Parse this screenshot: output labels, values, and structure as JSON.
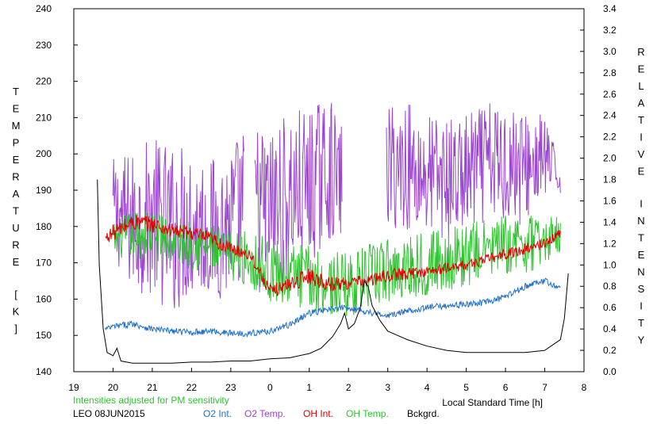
{
  "chart_data": {
    "type": "line",
    "left_axis_label": "TEMPERATURE [K]",
    "right_axis_label": "RELATIVE INTENSITY",
    "xlabel": "Local Standard Time [h]",
    "note": "Intensities adjusted for PM sensitivity",
    "station_date": "LEO 08JUN2015",
    "x_ticks": [
      "19",
      "20",
      "21",
      "22",
      "23",
      "0",
      "1",
      "2",
      "3",
      "4",
      "5",
      "6",
      "7",
      "8"
    ],
    "y_left_ticks": [
      "140",
      "150",
      "160",
      "170",
      "180",
      "190",
      "200",
      "210",
      "220",
      "230",
      "240"
    ],
    "y_right_ticks": [
      "0.0",
      "0.2",
      "0.4",
      "0.6",
      "0.8",
      "1.0",
      "1.2",
      "1.4",
      "1.6",
      "1.8",
      "2.0",
      "2.2",
      "2.4",
      "2.6",
      "2.8",
      "3.0",
      "3.2",
      "3.4"
    ],
    "xlim": [
      19,
      32
    ],
    "ylim_left": [
      140,
      240
    ],
    "ylim_right": [
      0,
      3.4
    ],
    "grid": false,
    "legend_position": "bottom",
    "legend": [
      {
        "key": "o2_int",
        "label": "O2 Int.",
        "color": "#1f6fd0"
      },
      {
        "key": "o2_temp",
        "label": "O2 Temp.",
        "color": "#9b46d0"
      },
      {
        "key": "oh_int",
        "label": "OH Int.",
        "color": "#e00000"
      },
      {
        "key": "oh_temp",
        "label": "OH Temp.",
        "color": "#2fc42f"
      },
      {
        "key": "bckgrd",
        "label": "Bckgrd.",
        "color": "#000000"
      }
    ],
    "series": [
      {
        "key": "o2_temp",
        "name": "O2 Temp.",
        "axis": "left",
        "color": "#9b46d0",
        "style": "noisy",
        "x": [
          20.0,
          20.5,
          21.0,
          21.5,
          22.0,
          22.5,
          23.0,
          23.5,
          24.0,
          24.5,
          25.0,
          25.5,
          25.8,
          27.0,
          27.5,
          28.0,
          28.5,
          29.0,
          29.5,
          30.0,
          30.5,
          31.0,
          31.4
        ],
        "y": [
          185,
          181,
          183,
          179,
          182,
          179,
          181,
          186,
          184,
          188,
          191,
          196,
          192,
          196,
          197,
          194,
          193,
          194,
          197,
          198,
          196,
          199,
          193
        ],
        "spread": [
          14,
          20,
          22,
          24,
          22,
          20,
          22,
          24,
          24,
          24,
          22,
          20,
          16,
          18,
          18,
          18,
          17,
          17,
          17,
          18,
          16,
          12,
          4
        ],
        "gaps": [
          [
            23.35,
            23.6
          ],
          [
            25.85,
            26.95
          ]
        ]
      },
      {
        "key": "oh_temp",
        "name": "OH Temp.",
        "axis": "left",
        "color": "#2fc42f",
        "style": "noisy",
        "x": [
          20.0,
          20.5,
          21.0,
          21.5,
          22.0,
          22.5,
          23.0,
          23.5,
          24.0,
          24.5,
          25.0,
          25.5,
          26.0,
          26.5,
          27.0,
          27.5,
          28.0,
          28.5,
          29.0,
          29.5,
          30.0,
          30.5,
          31.0,
          31.4
        ],
        "y": [
          176,
          178,
          178,
          176,
          175,
          174,
          172,
          171,
          168,
          167,
          166,
          164,
          164,
          166,
          168,
          169,
          170,
          171,
          172,
          174,
          175,
          175,
          176,
          178
        ],
        "spread": [
          5,
          7,
          7,
          7,
          7,
          7,
          7,
          8,
          9,
          9,
          9,
          9,
          9,
          9,
          9,
          9,
          9,
          9,
          9,
          8,
          8,
          8,
          7,
          5
        ]
      },
      {
        "key": "oh_int",
        "name": "OH Int.",
        "axis": "right",
        "color": "#e00000",
        "style": "noisy",
        "x": [
          19.8,
          20.0,
          20.5,
          21.0,
          21.5,
          22.0,
          22.5,
          23.0,
          23.5,
          24.0,
          24.5,
          25.0,
          25.5,
          26.0,
          26.5,
          27.0,
          27.5,
          28.0,
          28.5,
          29.0,
          29.5,
          30.0,
          30.5,
          31.0,
          31.4
        ],
        "y": [
          1.25,
          1.3,
          1.4,
          1.38,
          1.32,
          1.3,
          1.24,
          1.15,
          1.1,
          0.75,
          0.82,
          0.9,
          0.82,
          0.83,
          0.85,
          0.9,
          0.92,
          0.94,
          0.97,
          1.0,
          1.05,
          1.1,
          1.15,
          1.2,
          1.3
        ],
        "spread": [
          0.04,
          0.08,
          0.08,
          0.08,
          0.07,
          0.07,
          0.07,
          0.06,
          0.06,
          0.06,
          0.07,
          0.08,
          0.07,
          0.06,
          0.06,
          0.06,
          0.06,
          0.05,
          0.05,
          0.05,
          0.05,
          0.05,
          0.05,
          0.05,
          0.04
        ]
      },
      {
        "key": "o2_int",
        "name": "O2 Int.",
        "axis": "right",
        "color": "#1f6fd0",
        "style": "noisy",
        "x": [
          19.8,
          20.0,
          20.5,
          21.0,
          21.5,
          22.0,
          22.5,
          23.0,
          23.5,
          24.0,
          24.5,
          25.0,
          25.5,
          26.0,
          26.5,
          27.0,
          27.5,
          28.0,
          28.5,
          29.0,
          29.5,
          30.0,
          30.5,
          31.0,
          31.4
        ],
        "y": [
          0.4,
          0.42,
          0.45,
          0.4,
          0.38,
          0.37,
          0.38,
          0.36,
          0.36,
          0.38,
          0.44,
          0.55,
          0.58,
          0.6,
          0.56,
          0.52,
          0.57,
          0.6,
          0.62,
          0.63,
          0.65,
          0.7,
          0.8,
          0.85,
          0.78
        ],
        "spread": [
          0.02,
          0.03,
          0.03,
          0.03,
          0.03,
          0.03,
          0.03,
          0.03,
          0.03,
          0.03,
          0.03,
          0.03,
          0.03,
          0.03,
          0.03,
          0.03,
          0.03,
          0.03,
          0.03,
          0.03,
          0.03,
          0.03,
          0.03,
          0.03,
          0.02
        ]
      },
      {
        "key": "bckgrd",
        "name": "Bckgrd.",
        "axis": "right",
        "color": "#000000",
        "style": "smooth",
        "x": [
          19.6,
          19.65,
          19.75,
          19.85,
          20.0,
          20.1,
          20.2,
          20.5,
          21.0,
          21.5,
          22.0,
          22.5,
          23.0,
          23.5,
          24.0,
          24.5,
          25.0,
          25.3,
          25.6,
          25.8,
          25.9,
          26.0,
          26.15,
          26.3,
          26.4,
          26.5,
          26.6,
          26.8,
          27.0,
          27.5,
          28.0,
          28.5,
          29.0,
          29.5,
          30.0,
          30.5,
          31.0,
          31.2,
          31.4,
          31.5,
          31.6
        ],
        "y": [
          1.8,
          1.0,
          0.4,
          0.18,
          0.15,
          0.22,
          0.1,
          0.08,
          0.08,
          0.08,
          0.09,
          0.09,
          0.1,
          0.1,
          0.12,
          0.13,
          0.17,
          0.22,
          0.33,
          0.45,
          0.55,
          0.4,
          0.45,
          0.6,
          0.85,
          0.8,
          0.62,
          0.48,
          0.38,
          0.3,
          0.24,
          0.2,
          0.18,
          0.18,
          0.18,
          0.18,
          0.2,
          0.25,
          0.3,
          0.5,
          0.92
        ]
      }
    ]
  }
}
